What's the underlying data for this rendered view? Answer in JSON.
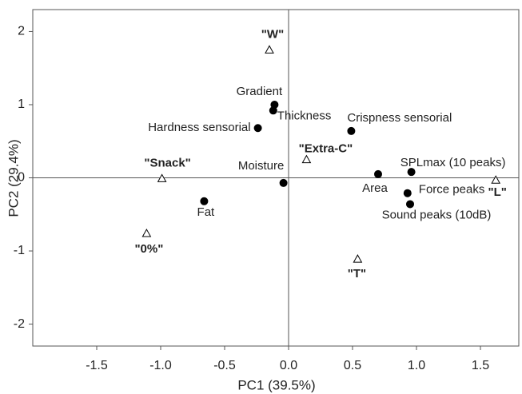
{
  "chart_data": {
    "type": "scatter",
    "xlabel": "PC1 (39.5%)",
    "ylabel": "PC2 (29.4%)",
    "xlim": [
      -2.0,
      1.8
    ],
    "ylim": [
      -2.3,
      2.3
    ],
    "xticks": [
      {
        "value": -1.5,
        "label": "-1.5"
      },
      {
        "value": -1.0,
        "label": "-1.0"
      },
      {
        "value": -0.5,
        "label": "-0.5"
      },
      {
        "value": 0.0,
        "label": "0.0"
      },
      {
        "value": 0.5,
        "label": "0.5"
      },
      {
        "value": 1.0,
        "label": "1.0"
      },
      {
        "value": 1.5,
        "label": "1.5"
      }
    ],
    "yticks": [
      -2,
      -1,
      0,
      1,
      2
    ],
    "zero_lines": true,
    "series": [
      {
        "marker": "circle",
        "color": "#000000",
        "x": [
          -0.11,
          -0.12,
          -0.24,
          0.49,
          -0.04,
          0.7,
          0.96,
          0.93,
          0.95,
          -0.66
        ],
        "values": [
          1.0,
          0.92,
          0.68,
          0.64,
          -0.07,
          0.05,
          0.08,
          -0.21,
          -0.36,
          -0.32
        ],
        "labels": [
          "Gradient",
          "Thickness",
          "Hardness sensorial",
          "Crispness sensorial",
          "Moisture",
          "Area",
          "SPLmax (10 peaks)",
          "Force peaks",
          "Sound peaks (10dB)",
          "Fat"
        ]
      },
      {
        "marker": "triangle",
        "color": "#000000",
        "x": [
          -0.15,
          0.14,
          -0.99,
          1.62,
          -1.11,
          0.54
        ],
        "values": [
          1.75,
          0.25,
          -0.01,
          -0.03,
          -0.76,
          -1.11
        ],
        "labels": [
          "\"W\"",
          "\"Extra-C\"",
          "\"Snack\"",
          "\"L\"",
          "\"0%\"",
          "\"T\""
        ]
      }
    ]
  }
}
